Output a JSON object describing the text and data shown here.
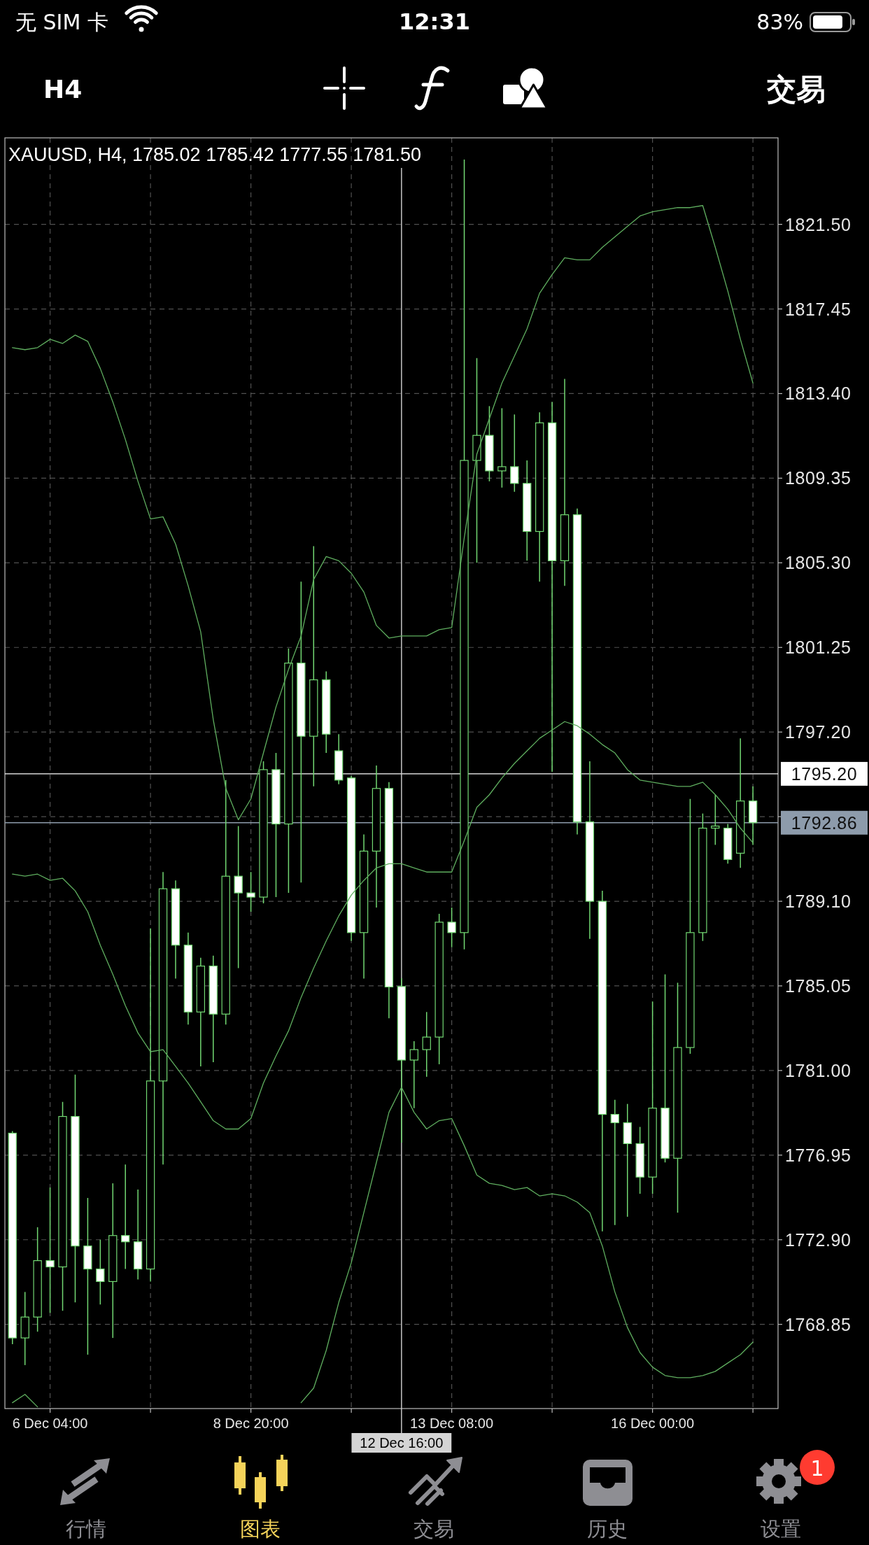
{
  "chart_data": {
    "type": "candlestick",
    "title": "XAUUSD, H4, 1785.02 1785.42 1777.55 1781.50",
    "categories": [
      null,
      null,
      null,
      "6 Dec 04:00",
      null,
      null,
      null,
      null,
      null,
      null,
      null,
      null,
      null,
      null,
      null,
      null,
      null,
      null,
      null,
      "8 Dec 20:00",
      null,
      null,
      null,
      null,
      null,
      null,
      null,
      null,
      null,
      null,
      null,
      "12 Dec 16:00",
      null,
      null,
      null,
      "13 Dec 08:00",
      null,
      null,
      null,
      null,
      null,
      null,
      null,
      null,
      null,
      null,
      null,
      null,
      null,
      null,
      null,
      "16 Dec 00:00",
      null,
      null,
      null,
      null,
      null,
      null,
      null,
      null
    ],
    "colors": [
      "#ffffff",
      "#000000",
      "#000000",
      "#ffffff",
      "#000000",
      "#ffffff",
      "#ffffff",
      "#ffffff",
      "#000000",
      "#ffffff",
      "#ffffff",
      "#000000",
      "#000000",
      "#ffffff",
      "#ffffff",
      "#000000",
      "#ffffff",
      "#000000",
      "#ffffff",
      "#ffffff",
      "#000000",
      "#ffffff",
      "#000000",
      "#ffffff",
      "#000000",
      "#ffffff",
      "#ffffff",
      "#ffffff",
      "#000000",
      "#000000",
      "#ffffff",
      "#ffffff",
      "#000000",
      "#000000",
      "#000000",
      "#ffffff",
      "#000000",
      "#000000",
      "#ffffff",
      "#000000",
      "#ffffff",
      "#ffffff",
      "#000000",
      "#ffffff",
      "#000000",
      "#ffffff",
      "#ffffff",
      "#ffffff",
      "#ffffff",
      "#ffffff",
      "#ffffff",
      "#000000",
      "#ffffff",
      "#000000",
      "#000000",
      "#000000",
      "#000000",
      "#ffffff",
      "#000000",
      "#ffffff"
    ],
    "ohlc": [
      [
        1778.0,
        1778.1,
        1767.9,
        1768.2
      ],
      [
        1768.2,
        1770.4,
        1766.9,
        1769.2
      ],
      [
        1769.2,
        1773.5,
        1768.5,
        1771.9
      ],
      [
        1771.9,
        1775.4,
        1769.4,
        1771.6
      ],
      [
        1771.6,
        1779.5,
        1769.5,
        1778.8
      ],
      [
        1778.8,
        1780.8,
        1769.9,
        1772.6
      ],
      [
        1772.6,
        1774.9,
        1767.4,
        1771.5
      ],
      [
        1771.5,
        1772.9,
        1769.8,
        1770.9
      ],
      [
        1770.9,
        1775.6,
        1768.2,
        1773.1
      ],
      [
        1773.1,
        1776.5,
        1771.5,
        1772.8
      ],
      [
        1772.8,
        1775.3,
        1771.0,
        1771.5
      ],
      [
        1771.5,
        1787.8,
        1770.9,
        1780.5
      ],
      [
        1780.5,
        1790.5,
        1776.5,
        1789.7
      ],
      [
        1789.7,
        1790.1,
        1785.4,
        1787.0
      ],
      [
        1787.0,
        1787.6,
        1783.2,
        1783.8
      ],
      [
        1783.8,
        1786.4,
        1781.2,
        1786.0
      ],
      [
        1786.0,
        1786.5,
        1781.4,
        1783.7
      ],
      [
        1783.7,
        1794.9,
        1783.2,
        1790.3
      ],
      [
        1790.3,
        1792.7,
        1785.9,
        1789.5
      ],
      [
        1789.5,
        1790.5,
        1788.6,
        1789.3
      ],
      [
        1789.3,
        1795.8,
        1789.0,
        1795.4
      ],
      [
        1795.4,
        1796.2,
        1789.3,
        1792.8
      ],
      [
        1792.8,
        1801.2,
        1789.5,
        1800.5
      ],
      [
        1800.5,
        1804.4,
        1790.0,
        1797.0
      ],
      [
        1797.0,
        1806.1,
        1794.6,
        1799.7
      ],
      [
        1799.7,
        1800.1,
        1796.2,
        1797.1
      ],
      [
        1796.3,
        1797.1,
        1794.7,
        1794.9
      ],
      [
        1795.0,
        1795.1,
        1787.2,
        1787.6
      ],
      [
        1787.6,
        1792.3,
        1785.4,
        1791.5
      ],
      [
        1791.5,
        1795.6,
        1788.8,
        1794.5
      ],
      [
        1794.5,
        1794.8,
        1783.5,
        1785.0
      ],
      [
        1785.02,
        1785.42,
        1777.55,
        1781.5
      ],
      [
        1781.5,
        1782.4,
        1779.2,
        1782.0
      ],
      [
        1782.0,
        1783.8,
        1780.7,
        1782.6
      ],
      [
        1782.6,
        1788.5,
        1781.3,
        1788.1
      ],
      [
        1788.1,
        1788.8,
        1786.9,
        1787.6
      ],
      [
        1787.6,
        1824.6,
        1786.8,
        1810.2
      ],
      [
        1810.2,
        1815.1,
        1805.3,
        1811.4
      ],
      [
        1811.4,
        1812.8,
        1809.2,
        1809.7
      ],
      [
        1809.7,
        1812.7,
        1808.9,
        1809.9
      ],
      [
        1809.9,
        1812.4,
        1808.7,
        1809.1
      ],
      [
        1809.1,
        1810.2,
        1805.4,
        1806.8
      ],
      [
        1806.8,
        1812.5,
        1804.4,
        1812.0
      ],
      [
        1812.0,
        1813.0,
        1795.3,
        1805.4
      ],
      [
        1805.4,
        1814.1,
        1804.2,
        1807.6
      ],
      [
        1807.6,
        1807.9,
        1792.3,
        1792.9
      ],
      [
        1792.9,
        1795.8,
        1787.3,
        1789.1
      ],
      [
        1789.1,
        1789.6,
        1773.3,
        1778.9
      ],
      [
        1778.9,
        1779.6,
        1773.6,
        1778.5
      ],
      [
        1778.5,
        1779.4,
        1774.0,
        1777.5
      ],
      [
        1777.5,
        1778.3,
        1775.1,
        1775.9
      ],
      [
        1775.9,
        1784.3,
        1775.1,
        1779.2
      ],
      [
        1779.2,
        1785.6,
        1776.6,
        1776.8
      ],
      [
        1776.8,
        1785.2,
        1774.2,
        1782.1
      ],
      [
        1782.1,
        1794.0,
        1781.8,
        1787.6
      ],
      [
        1787.6,
        1793.3,
        1787.2,
        1792.6
      ],
      [
        1792.6,
        1794.2,
        1791.8,
        1792.7
      ],
      [
        1792.6,
        1792.8,
        1790.9,
        1791.1
      ],
      [
        1791.4,
        1796.9,
        1790.7,
        1793.9
      ],
      [
        1793.9,
        1794.6,
        1791.8,
        1792.86
      ]
    ],
    "series": [
      {
        "type": "line",
        "color": "#5fae5f",
        "values": [
          1815.6,
          1815.5,
          1815.6,
          1816.0,
          1815.8,
          1816.2,
          1815.9,
          1814.6,
          1813.0,
          1811.2,
          1809.2,
          1807.4,
          1807.5,
          1806.2,
          1804.2,
          1802.0,
          1797.8,
          1794.5,
          1793.0,
          1794.0,
          1796.2,
          1798.4,
          1800.2,
          1801.8,
          1804.5,
          1805.6,
          1805.4,
          1804.8,
          1803.9,
          1802.3,
          1801.7,
          1801.8,
          1801.8,
          1801.8,
          1802.1,
          1802.2,
          1806.5,
          1810.5,
          1812.2,
          1813.9,
          1815.2,
          1816.5,
          1818.2,
          1819.1,
          1819.9,
          1819.8,
          1819.8,
          1820.4,
          1820.9,
          1821.4,
          1821.9,
          1822.1,
          1822.2,
          1822.3,
          1822.3,
          1822.4,
          1820.4,
          1818.3,
          1816.0,
          1813.9
        ]
      },
      {
        "type": "line",
        "color": "#5fae5f",
        "values": [
          1790.4,
          1790.3,
          1790.4,
          1790.1,
          1790.2,
          1789.6,
          1788.6,
          1787.0,
          1785.6,
          1784.1,
          1782.8,
          1781.9,
          1782.0,
          1781.2,
          1780.4,
          1779.5,
          1778.6,
          1778.2,
          1778.2,
          1778.7,
          1780.4,
          1781.7,
          1782.9,
          1784.5,
          1785.9,
          1787.2,
          1788.4,
          1789.4,
          1790.1,
          1790.7,
          1790.9,
          1790.9,
          1790.7,
          1790.5,
          1790.5,
          1790.5,
          1792.0,
          1793.6,
          1794.2,
          1795.0,
          1795.7,
          1796.3,
          1796.9,
          1797.3,
          1797.7,
          1797.5,
          1797.1,
          1796.6,
          1796.2,
          1795.4,
          1794.9,
          1794.8,
          1794.7,
          1794.6,
          1794.6,
          1794.8,
          1794.2,
          1793.5,
          1792.6,
          1791.9
        ]
      },
      {
        "type": "line",
        "color": "#5fae5f",
        "values": [
          1765.1,
          1765.5,
          1764.9,
          null,
          null,
          null,
          null,
          null,
          null,
          null,
          null,
          null,
          null,
          null,
          null,
          null,
          null,
          null,
          null,
          null,
          null,
          null,
          null,
          1765.1,
          1765.8,
          1767.6,
          1769.9,
          1771.8,
          1774.2,
          1776.6,
          1779.0,
          1780.2,
          1779.0,
          1778.2,
          1778.6,
          1778.7,
          1777.4,
          1776.0,
          1775.6,
          1775.5,
          1775.3,
          1775.4,
          1775.0,
          1775.1,
          1775.0,
          1774.7,
          1774.2,
          1772.6,
          1770.4,
          1768.7,
          1767.5,
          1766.8,
          1766.4,
          1766.3,
          1766.3,
          1766.4,
          1766.6,
          1767.0,
          1767.4,
          1768.0
        ]
      }
    ],
    "ylim": [
      1764.82,
      1825.64
    ],
    "yticks": [
      1768.85,
      {
        "value": 1772.9,
        "label": "1772.90"
      },
      1776.95,
      {
        "value": 1781.0,
        "label": "1781.00"
      },
      1785.05,
      {
        "value": 1789.1,
        "label": "1789.10"
      },
      {
        "value": 1793.15,
        "label": null
      },
      {
        "value": 1797.2,
        "label": "1797.20"
      },
      1801.25,
      {
        "value": 1805.3,
        "label": "1805.30"
      },
      1809.35,
      {
        "value": 1813.4,
        "label": "1813.40"
      },
      1817.45,
      {
        "value": 1821.5,
        "label": "1821.50"
      }
    ],
    "grid": true,
    "ref_lines": [
      {
        "axis": "y",
        "value": 1795.2,
        "label": "1795.20",
        "color": "#ffffff"
      },
      {
        "axis": "y",
        "value": 1792.86,
        "label": "1792.86",
        "color": "#8d9bab"
      },
      {
        "axis": "x",
        "value": "12 Dec 16:00",
        "color": "#d4d4d4"
      }
    ],
    "annotations": [
      "无 SIM 卡",
      "12:31",
      "83%",
      "H4",
      "交易",
      "行情",
      "图表",
      "交易",
      "历史",
      "设置",
      "1"
    ]
  }
}
